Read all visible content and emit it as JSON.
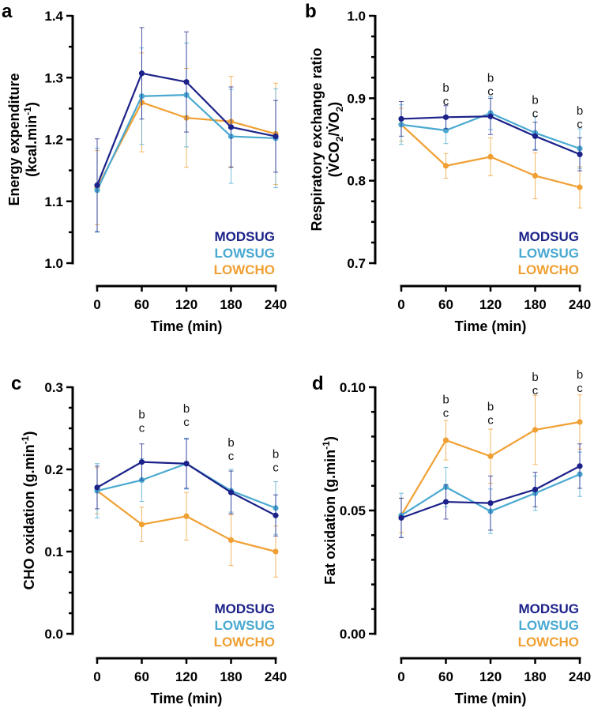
{
  "colors": {
    "MODSUG": "#1b2189",
    "LOWSUG": "#4aa9d1",
    "LOWCHO": "#f0a033"
  },
  "chart_data": [
    {
      "panel": "a",
      "type": "line",
      "title": "",
      "xlabel": "Time (min)",
      "ylabel_line1": "Energy expenditure",
      "ylabel_line2": "(kcal.min",
      "ylabel_sup": "-1",
      "ylabel_end": ")",
      "x": [
        0,
        60,
        120,
        180,
        240
      ],
      "xticks": [
        "0",
        "60",
        "120",
        "180",
        "240"
      ],
      "ylim": [
        1.0,
        1.4
      ],
      "yticks": [
        1.0,
        1.1,
        1.2,
        1.3,
        1.4
      ],
      "ytick_labels": [
        "1.0",
        "1.1",
        "1.2",
        "1.3",
        "1.4"
      ],
      "yminor_step": 0.05,
      "legend": [
        "MODSUG",
        "LOWSUG",
        "LOWCHO"
      ],
      "legend_position": "bottom-right",
      "series": [
        {
          "name": "MODSUG",
          "values": [
            1.126,
            1.307,
            1.293,
            1.22,
            1.205
          ],
          "err": [
            0.075,
            0.074,
            0.081,
            0.065,
            0.058
          ]
        },
        {
          "name": "LOWSUG",
          "values": [
            1.118,
            1.27,
            1.272,
            1.205,
            1.202
          ],
          "err": [
            0.068,
            0.078,
            0.084,
            0.076,
            0.08
          ]
        },
        {
          "name": "LOWCHO",
          "values": [
            1.122,
            1.26,
            1.235,
            1.229,
            1.209
          ],
          "err": [
            0.06,
            0.08,
            0.08,
            0.073,
            0.082
          ]
        }
      ],
      "annotations": []
    },
    {
      "panel": "b",
      "type": "line",
      "title": "",
      "xlabel": "Time (min)",
      "ylabel_line1": "Respiratory exchange ratio",
      "ylabel_line2": "(V̇CO",
      "ylabel_sub1": "2",
      "ylabel_mid": "/V̇O",
      "ylabel_sub2": "2",
      "ylabel_end": ")",
      "x": [
        0,
        60,
        120,
        180,
        240
      ],
      "xticks": [
        "0",
        "60",
        "120",
        "180",
        "240"
      ],
      "ylim": [
        0.7,
        1.0
      ],
      "yticks": [
        0.7,
        0.8,
        0.9,
        1.0
      ],
      "ytick_labels": [
        "0.7",
        "0.8",
        "0.9",
        "1.0"
      ],
      "yminor_step": 0.025,
      "legend": [
        "MODSUG",
        "LOWSUG",
        "LOWCHO"
      ],
      "legend_position": "bottom-right",
      "series": [
        {
          "name": "MODSUG",
          "values": [
            0.875,
            0.877,
            0.878,
            0.854,
            0.832
          ],
          "err": [
            0.021,
            0.014,
            0.022,
            0.017,
            0.02
          ]
        },
        {
          "name": "LOWSUG",
          "values": [
            0.868,
            0.861,
            0.882,
            0.858,
            0.839
          ],
          "err": [
            0.024,
            0.016,
            0.02,
            0.02,
            0.024
          ]
        },
        {
          "name": "LOWCHO",
          "values": [
            0.868,
            0.818,
            0.829,
            0.806,
            0.792
          ],
          "err": [
            0.02,
            0.015,
            0.023,
            0.028,
            0.025
          ]
        }
      ],
      "annotations": [
        {
          "x": 60,
          "lines": [
            "b",
            "c"
          ],
          "y": 0.908
        },
        {
          "x": 120,
          "lines": [
            "b",
            "c"
          ],
          "y": 0.92
        },
        {
          "x": 180,
          "lines": [
            "b",
            "c"
          ],
          "y": 0.893
        },
        {
          "x": 240,
          "lines": [
            "b",
            "c"
          ],
          "y": 0.88
        }
      ]
    },
    {
      "panel": "c",
      "type": "line",
      "title": "",
      "xlabel": "Time (min)",
      "ylabel_line1": "CHO oxidation (g.min",
      "ylabel_sup": "-1",
      "ylabel_end": ")",
      "x": [
        0,
        60,
        120,
        180,
        240
      ],
      "xticks": [
        "0",
        "60",
        "120",
        "180",
        "240"
      ],
      "ylim": [
        0.0,
        0.3
      ],
      "yticks": [
        0.0,
        0.1,
        0.2,
        0.3
      ],
      "ytick_labels": [
        "0.0",
        "0.1",
        "0.2",
        "0.3"
      ],
      "yminor_step": 0.025,
      "legend": [
        "MODSUG",
        "LOWSUG",
        "LOWCHO"
      ],
      "legend_position": "bottom-right",
      "series": [
        {
          "name": "MODSUG",
          "values": [
            0.178,
            0.209,
            0.207,
            0.172,
            0.144
          ],
          "err": [
            0.026,
            0.022,
            0.03,
            0.026,
            0.025
          ]
        },
        {
          "name": "LOWSUG",
          "values": [
            0.174,
            0.187,
            0.207,
            0.174,
            0.153
          ],
          "err": [
            0.033,
            0.026,
            0.031,
            0.026,
            0.032
          ]
        },
        {
          "name": "LOWCHO",
          "values": [
            0.174,
            0.133,
            0.143,
            0.114,
            0.1
          ],
          "err": [
            0.028,
            0.021,
            0.029,
            0.031,
            0.031
          ]
        }
      ],
      "annotations": [
        {
          "x": 60,
          "lines": [
            "b",
            "c"
          ],
          "y": 0.262
        },
        {
          "x": 120,
          "lines": [
            "b",
            "c"
          ],
          "y": 0.269
        },
        {
          "x": 180,
          "lines": [
            "b",
            "c"
          ],
          "y": 0.228
        },
        {
          "x": 240,
          "lines": [
            "b",
            "c"
          ],
          "y": 0.214
        }
      ]
    },
    {
      "panel": "d",
      "type": "line",
      "title": "",
      "xlabel": "Time (min)",
      "ylabel_line1": "Fat oxidation (g.min",
      "ylabel_sup": "-1",
      "ylabel_end": ")",
      "x": [
        0,
        60,
        120,
        180,
        240
      ],
      "xticks": [
        "0",
        "60",
        "120",
        "180",
        "240"
      ],
      "ylim": [
        0.0,
        0.1
      ],
      "yticks": [
        0.0,
        0.05,
        0.1
      ],
      "ytick_labels": [
        "0.00",
        "0.05",
        "0.10"
      ],
      "yminor_step": 0.01,
      "legend": [
        "MODSUG",
        "LOWSUG",
        "LOWCHO"
      ],
      "legend_position": "bottom-right",
      "series": [
        {
          "name": "MODSUG",
          "values": [
            0.047,
            0.0535,
            0.053,
            0.0585,
            0.068
          ],
          "err": [
            0.008,
            0.007,
            0.011,
            0.007,
            0.009
          ]
        },
        {
          "name": "LOWSUG",
          "values": [
            0.048,
            0.0595,
            0.0497,
            0.057,
            0.0647
          ],
          "err": [
            0.009,
            0.008,
            0.009,
            0.007,
            0.009
          ]
        },
        {
          "name": "LOWCHO",
          "values": [
            0.048,
            0.0785,
            0.072,
            0.0827,
            0.0859
          ],
          "err": [
            0.007,
            0.008,
            0.011,
            0.014,
            0.011
          ]
        }
      ],
      "annotations": [
        {
          "x": 60,
          "lines": [
            "b",
            "c"
          ],
          "y": 0.0935
        },
        {
          "x": 120,
          "lines": [
            "b",
            "c"
          ],
          "y": 0.0905
        },
        {
          "x": 180,
          "lines": [
            "b",
            "c"
          ],
          "y": 0.1025
        },
        {
          "x": 240,
          "lines": [
            "b",
            "c"
          ],
          "y": 0.1035
        }
      ]
    }
  ]
}
